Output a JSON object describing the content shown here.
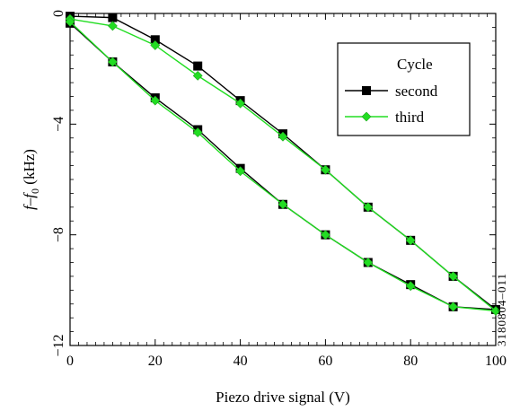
{
  "chart_data": {
    "type": "line",
    "xlabel": "Piezo drive signal (V)",
    "ylabel_main": "f–f",
    "ylabel_sub": "0",
    "ylabel_unit": " (kHz)",
    "xlim": [
      0,
      100
    ],
    "ylim": [
      -12,
      0
    ],
    "x_ticks": [
      0,
      20,
      40,
      60,
      80,
      100
    ],
    "y_ticks": [
      0,
      -4,
      -8,
      -12
    ],
    "y_tick_labels": [
      "0",
      "−4",
      "−8",
      "−12"
    ],
    "grid": false,
    "legend": {
      "title": "Cycle",
      "position": "top-right"
    },
    "side_id": "3180804–011",
    "series": [
      {
        "name": "second",
        "color": "#000000",
        "marker": "square",
        "x": [
          0,
          10,
          20,
          30,
          40,
          50,
          60,
          70,
          80,
          90,
          100,
          90,
          80,
          70,
          60,
          50,
          40,
          30,
          20,
          10,
          0
        ],
        "y": [
          -0.1,
          -0.15,
          -0.95,
          -1.9,
          -3.15,
          -4.35,
          -5.65,
          -7.0,
          -8.2,
          -9.5,
          -10.7,
          -10.6,
          -9.8,
          -9.0,
          -8.0,
          -6.9,
          -5.6,
          -4.2,
          -3.05,
          -1.75,
          -0.35
        ]
      },
      {
        "name": "third",
        "color": "#22dd22",
        "marker": "diamond",
        "x": [
          0,
          10,
          20,
          30,
          40,
          50,
          60,
          70,
          80,
          90,
          100,
          90,
          80,
          70,
          60,
          50,
          40,
          30,
          20,
          10,
          0
        ],
        "y": [
          -0.2,
          -0.45,
          -1.15,
          -2.25,
          -3.25,
          -4.45,
          -5.65,
          -7.0,
          -8.2,
          -9.5,
          -10.75,
          -10.6,
          -9.85,
          -9.0,
          -8.0,
          -6.9,
          -5.7,
          -4.3,
          -3.15,
          -1.75,
          -0.3
        ]
      }
    ]
  }
}
